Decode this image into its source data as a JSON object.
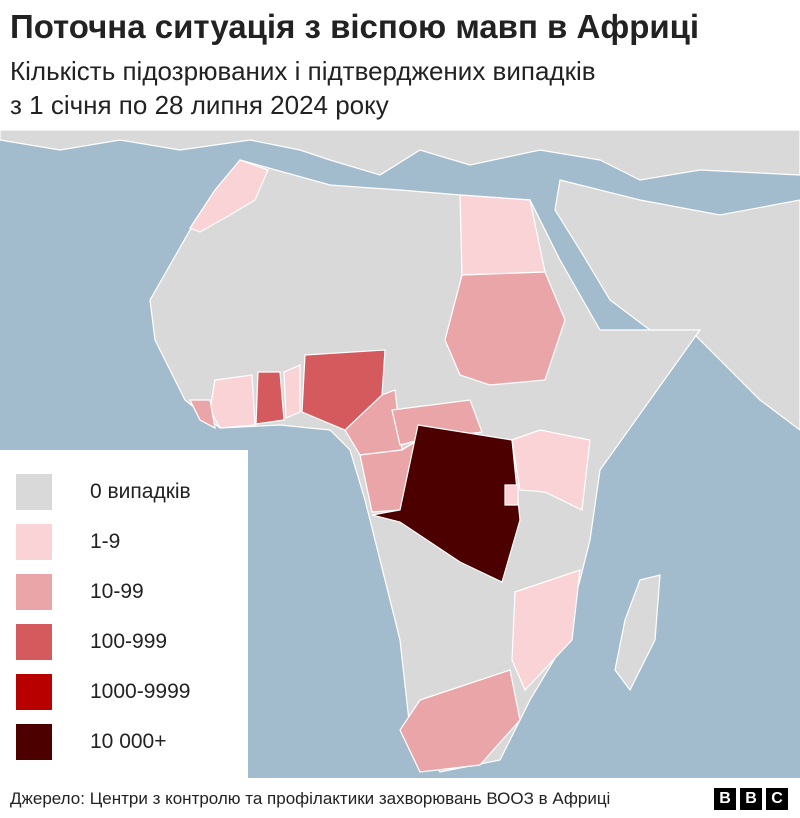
{
  "header": {
    "title": "Поточна ситуація з віспою мавп в Африці",
    "subtitle_lines": [
      "Кількість підозрюваних і підтверджених випадків",
      "з 1 січня по 28 липня 2024 року"
    ]
  },
  "legend": {
    "items": [
      {
        "label": "0 випадків",
        "color": "#d9d9d9"
      },
      {
        "label": "1-9",
        "color": "#f9d3d6"
      },
      {
        "label": "10-99",
        "color": "#e9a5a7"
      },
      {
        "label": "100-999",
        "color": "#d45a5e"
      },
      {
        "label": "1000-9999",
        "color": "#b80000"
      },
      {
        "label": "10 000+",
        "color": "#4d0000"
      }
    ]
  },
  "footer": {
    "source": "Джерело: Центри з контролю та профілактики захворювань ВООЗ в Африці",
    "logo": [
      "B",
      "B",
      "C"
    ]
  }
}
